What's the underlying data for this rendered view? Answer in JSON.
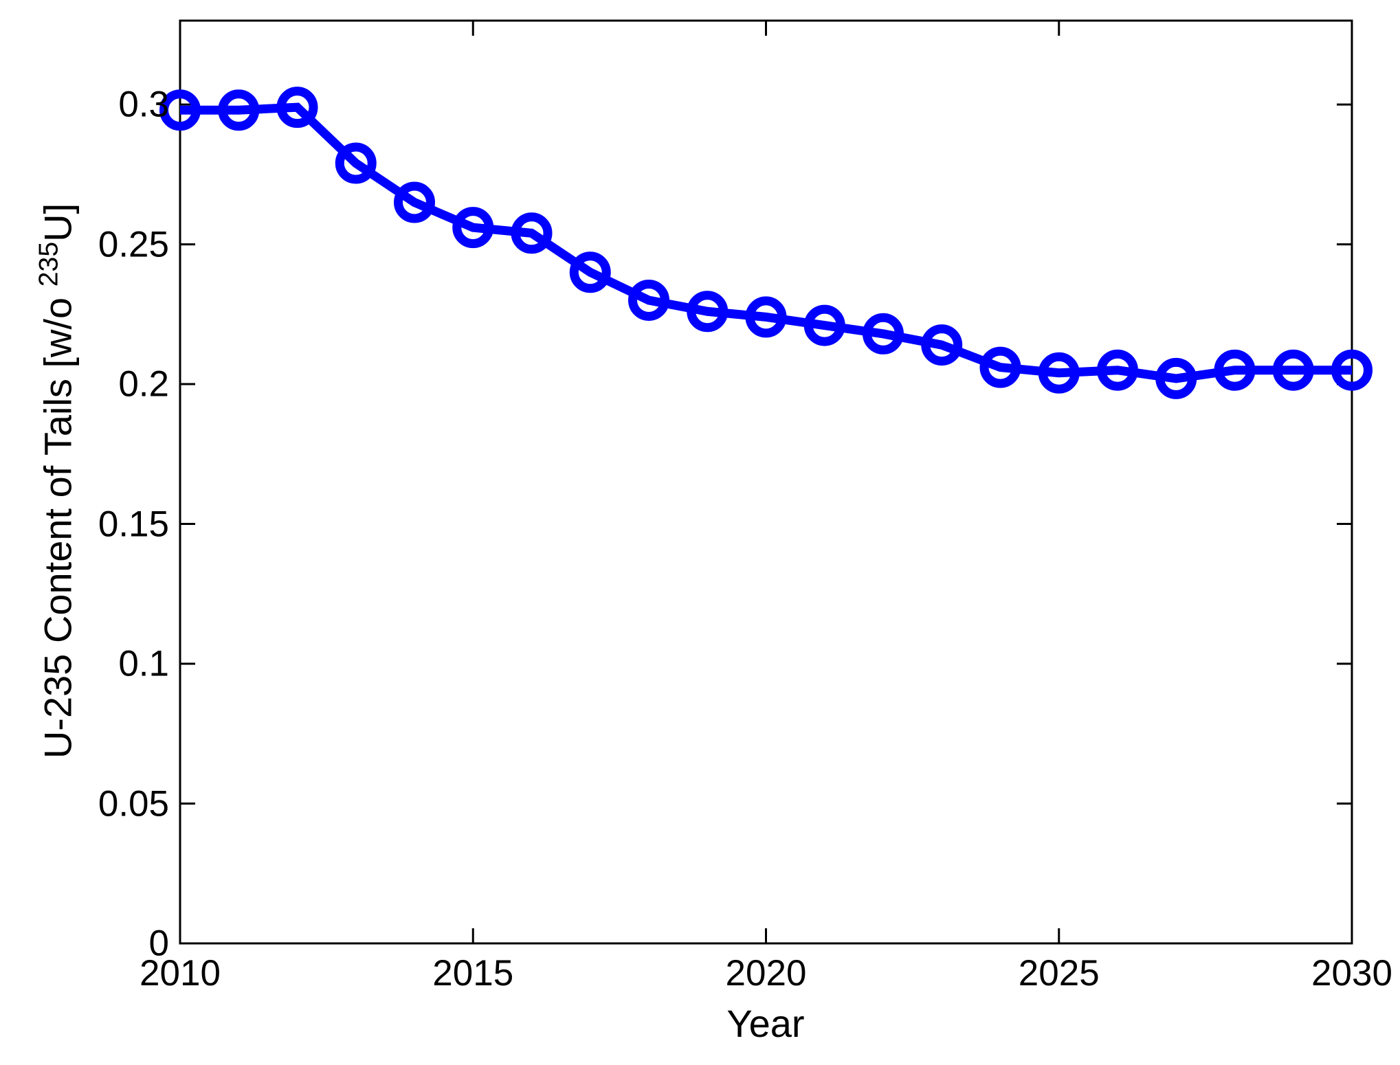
{
  "chart_data": {
    "type": "line",
    "title": "",
    "xlabel": "Year",
    "ylabel_prefix": "U-235 Content of Tails [w/o ",
    "ylabel_superscript": "235",
    "ylabel_suffix": "U]",
    "series": [
      {
        "name": "U-235 content of tails",
        "x": [
          2010,
          2011,
          2012,
          2013,
          2014,
          2015,
          2016,
          2017,
          2018,
          2019,
          2020,
          2021,
          2022,
          2023,
          2024,
          2025,
          2026,
          2027,
          2028,
          2029,
          2030
        ],
        "y": [
          0.298,
          0.298,
          0.299,
          0.279,
          0.265,
          0.256,
          0.254,
          0.24,
          0.23,
          0.226,
          0.224,
          0.221,
          0.218,
          0.214,
          0.206,
          0.204,
          0.205,
          0.202,
          0.205,
          0.205,
          0.205
        ]
      }
    ],
    "xlim": [
      2010,
      2030
    ],
    "ylim": [
      0,
      0.33
    ],
    "x_ticks": [
      {
        "value": 2010,
        "label": "2010"
      },
      {
        "value": 2015,
        "label": "2015"
      },
      {
        "value": 2020,
        "label": "2020"
      },
      {
        "value": 2025,
        "label": "2025"
      },
      {
        "value": 2030,
        "label": "2030"
      }
    ],
    "y_ticks": [
      {
        "value": 0,
        "label": "0"
      },
      {
        "value": 0.05,
        "label": "0.05"
      },
      {
        "value": 0.1,
        "label": "0.1"
      },
      {
        "value": 0.15,
        "label": "0.15"
      },
      {
        "value": 0.2,
        "label": "0.2"
      },
      {
        "value": 0.25,
        "label": "0.25"
      },
      {
        "value": 0.3,
        "label": "0.3"
      }
    ],
    "grid": false,
    "legend_position": "none",
    "line_color": "#0000FF",
    "axis_color": "#000000",
    "marker": "open-circle"
  }
}
